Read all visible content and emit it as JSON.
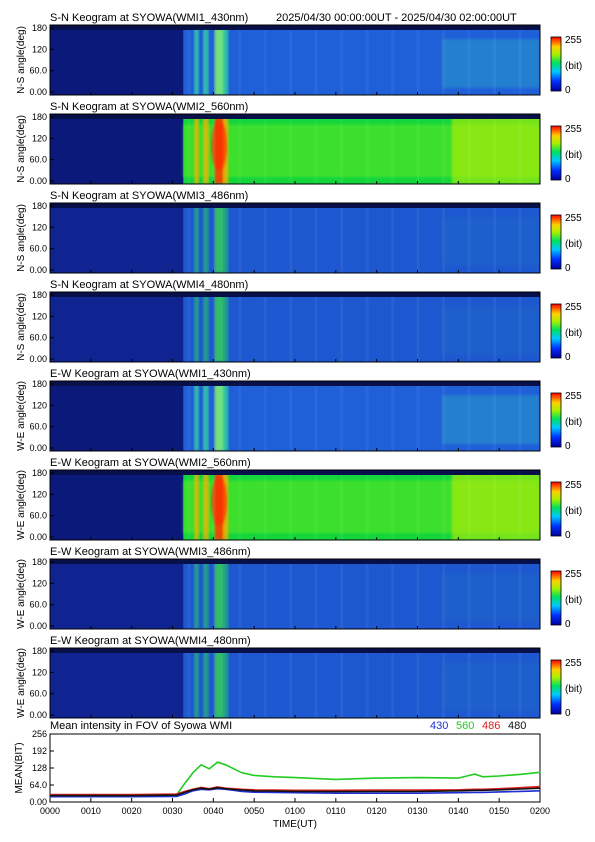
{
  "header": {
    "time_range": "2025/04/30 00:00:00UT - 2025/04/30 02:00:00UT"
  },
  "keograms": [
    {
      "title": "S-N Keogram at SYOWA(WMI1_430nm)",
      "ylabel": "N-S angle(deg)",
      "yticks": [
        "180",
        "120",
        "60.0",
        "0.00"
      ],
      "colorbar": {
        "max": "255",
        "unit": "(bit)",
        "min": "0"
      },
      "profile": "dim"
    },
    {
      "title": "S-N Keogram at SYOWA(WMI2_560nm)",
      "ylabel": "N-S angle(deg)",
      "yticks": [
        "180",
        "120",
        "60.0",
        "0.00"
      ],
      "colorbar": {
        "max": "255",
        "unit": "(bit)",
        "min": "0"
      },
      "profile": "bright"
    },
    {
      "title": "S-N Keogram at SYOWA(WMI3_486nm)",
      "ylabel": "N-S angle(deg)",
      "yticks": [
        "180",
        "120",
        "60.0",
        "0.00"
      ],
      "colorbar": {
        "max": "255",
        "unit": "(bit)",
        "min": "0"
      },
      "profile": "faint"
    },
    {
      "title": "S-N Keogram at SYOWA(WMI4_480nm)",
      "ylabel": "N-S angle(deg)",
      "yticks": [
        "180",
        "120",
        "60.0",
        "0.00"
      ],
      "colorbar": {
        "max": "255",
        "unit": "(bit)",
        "min": "0"
      },
      "profile": "faint"
    },
    {
      "title": "E-W Keogram at SYOWA(WMI1_430nm)",
      "ylabel": "W-E angle(deg)",
      "yticks": [
        "180",
        "120",
        "60.0",
        "0.00"
      ],
      "colorbar": {
        "max": "255",
        "unit": "(bit)",
        "min": "0"
      },
      "profile": "dim"
    },
    {
      "title": "E-W Keogram at SYOWA(WMI2_560nm)",
      "ylabel": "W-E angle(deg)",
      "yticks": [
        "180",
        "120",
        "60.0",
        "0.00"
      ],
      "colorbar": {
        "max": "255",
        "unit": "(bit)",
        "min": "0"
      },
      "profile": "bright"
    },
    {
      "title": "E-W Keogram at SYOWA(WMI3_486nm)",
      "ylabel": "W-E angle(deg)",
      "yticks": [
        "180",
        "120",
        "60.0",
        "0.00"
      ],
      "colorbar": {
        "max": "255",
        "unit": "(bit)",
        "min": "0"
      },
      "profile": "faint"
    },
    {
      "title": "E-W Keogram at SYOWA(WMI4_480nm)",
      "ylabel": "W-E angle(deg)",
      "yticks": [
        "180",
        "120",
        "60.0",
        "0.00"
      ],
      "colorbar": {
        "max": "255",
        "unit": "(bit)",
        "min": "0"
      },
      "profile": "faint"
    }
  ],
  "chart_data": {
    "type": "line",
    "title": "Mean intensity in FOV of Syowa WMI",
    "xlabel": "TIME(UT)",
    "ylabel": "MEAN(BIT)",
    "x_ticks": [
      "0000",
      "0010",
      "0020",
      "0030",
      "0040",
      "0050",
      "0100",
      "0110",
      "0120",
      "0130",
      "0140",
      "0150",
      "0200"
    ],
    "y_ticks": [
      "256",
      "192",
      "128",
      "64.0",
      "0.00"
    ],
    "xlim_minutes": [
      0,
      120
    ],
    "ylim": [
      0,
      256
    ],
    "x_minutes": [
      0,
      10,
      20,
      31,
      33,
      35,
      37,
      39,
      41,
      43,
      45,
      47,
      50,
      55,
      60,
      70,
      80,
      90,
      100,
      104,
      106,
      110,
      115,
      120
    ],
    "series": [
      {
        "name": "430",
        "color": "#1f2fd0",
        "values": [
          20,
          20,
          20,
          21,
          30,
          42,
          48,
          46,
          50,
          48,
          44,
          40,
          37,
          36,
          35,
          33,
          33,
          33,
          35,
          36,
          36,
          38,
          40,
          42
        ]
      },
      {
        "name": "560",
        "color": "#22cc22",
        "values": [
          25,
          25,
          25,
          27,
          70,
          110,
          140,
          125,
          150,
          140,
          125,
          110,
          100,
          95,
          92,
          85,
          90,
          92,
          90,
          105,
          95,
          98,
          104,
          112
        ]
      },
      {
        "name": "486",
        "color": "#dd2020",
        "values": [
          28,
          28,
          28,
          30,
          40,
          48,
          55,
          50,
          57,
          52,
          50,
          48,
          46,
          45,
          44,
          44,
          45,
          45,
          46,
          48,
          48,
          50,
          54,
          58
        ]
      },
      {
        "name": "480",
        "color": "#111111",
        "values": [
          24,
          24,
          24,
          26,
          36,
          46,
          52,
          48,
          54,
          50,
          47,
          45,
          42,
          41,
          40,
          39,
          40,
          40,
          42,
          44,
          44,
          46,
          49,
          52
        ]
      }
    ]
  }
}
